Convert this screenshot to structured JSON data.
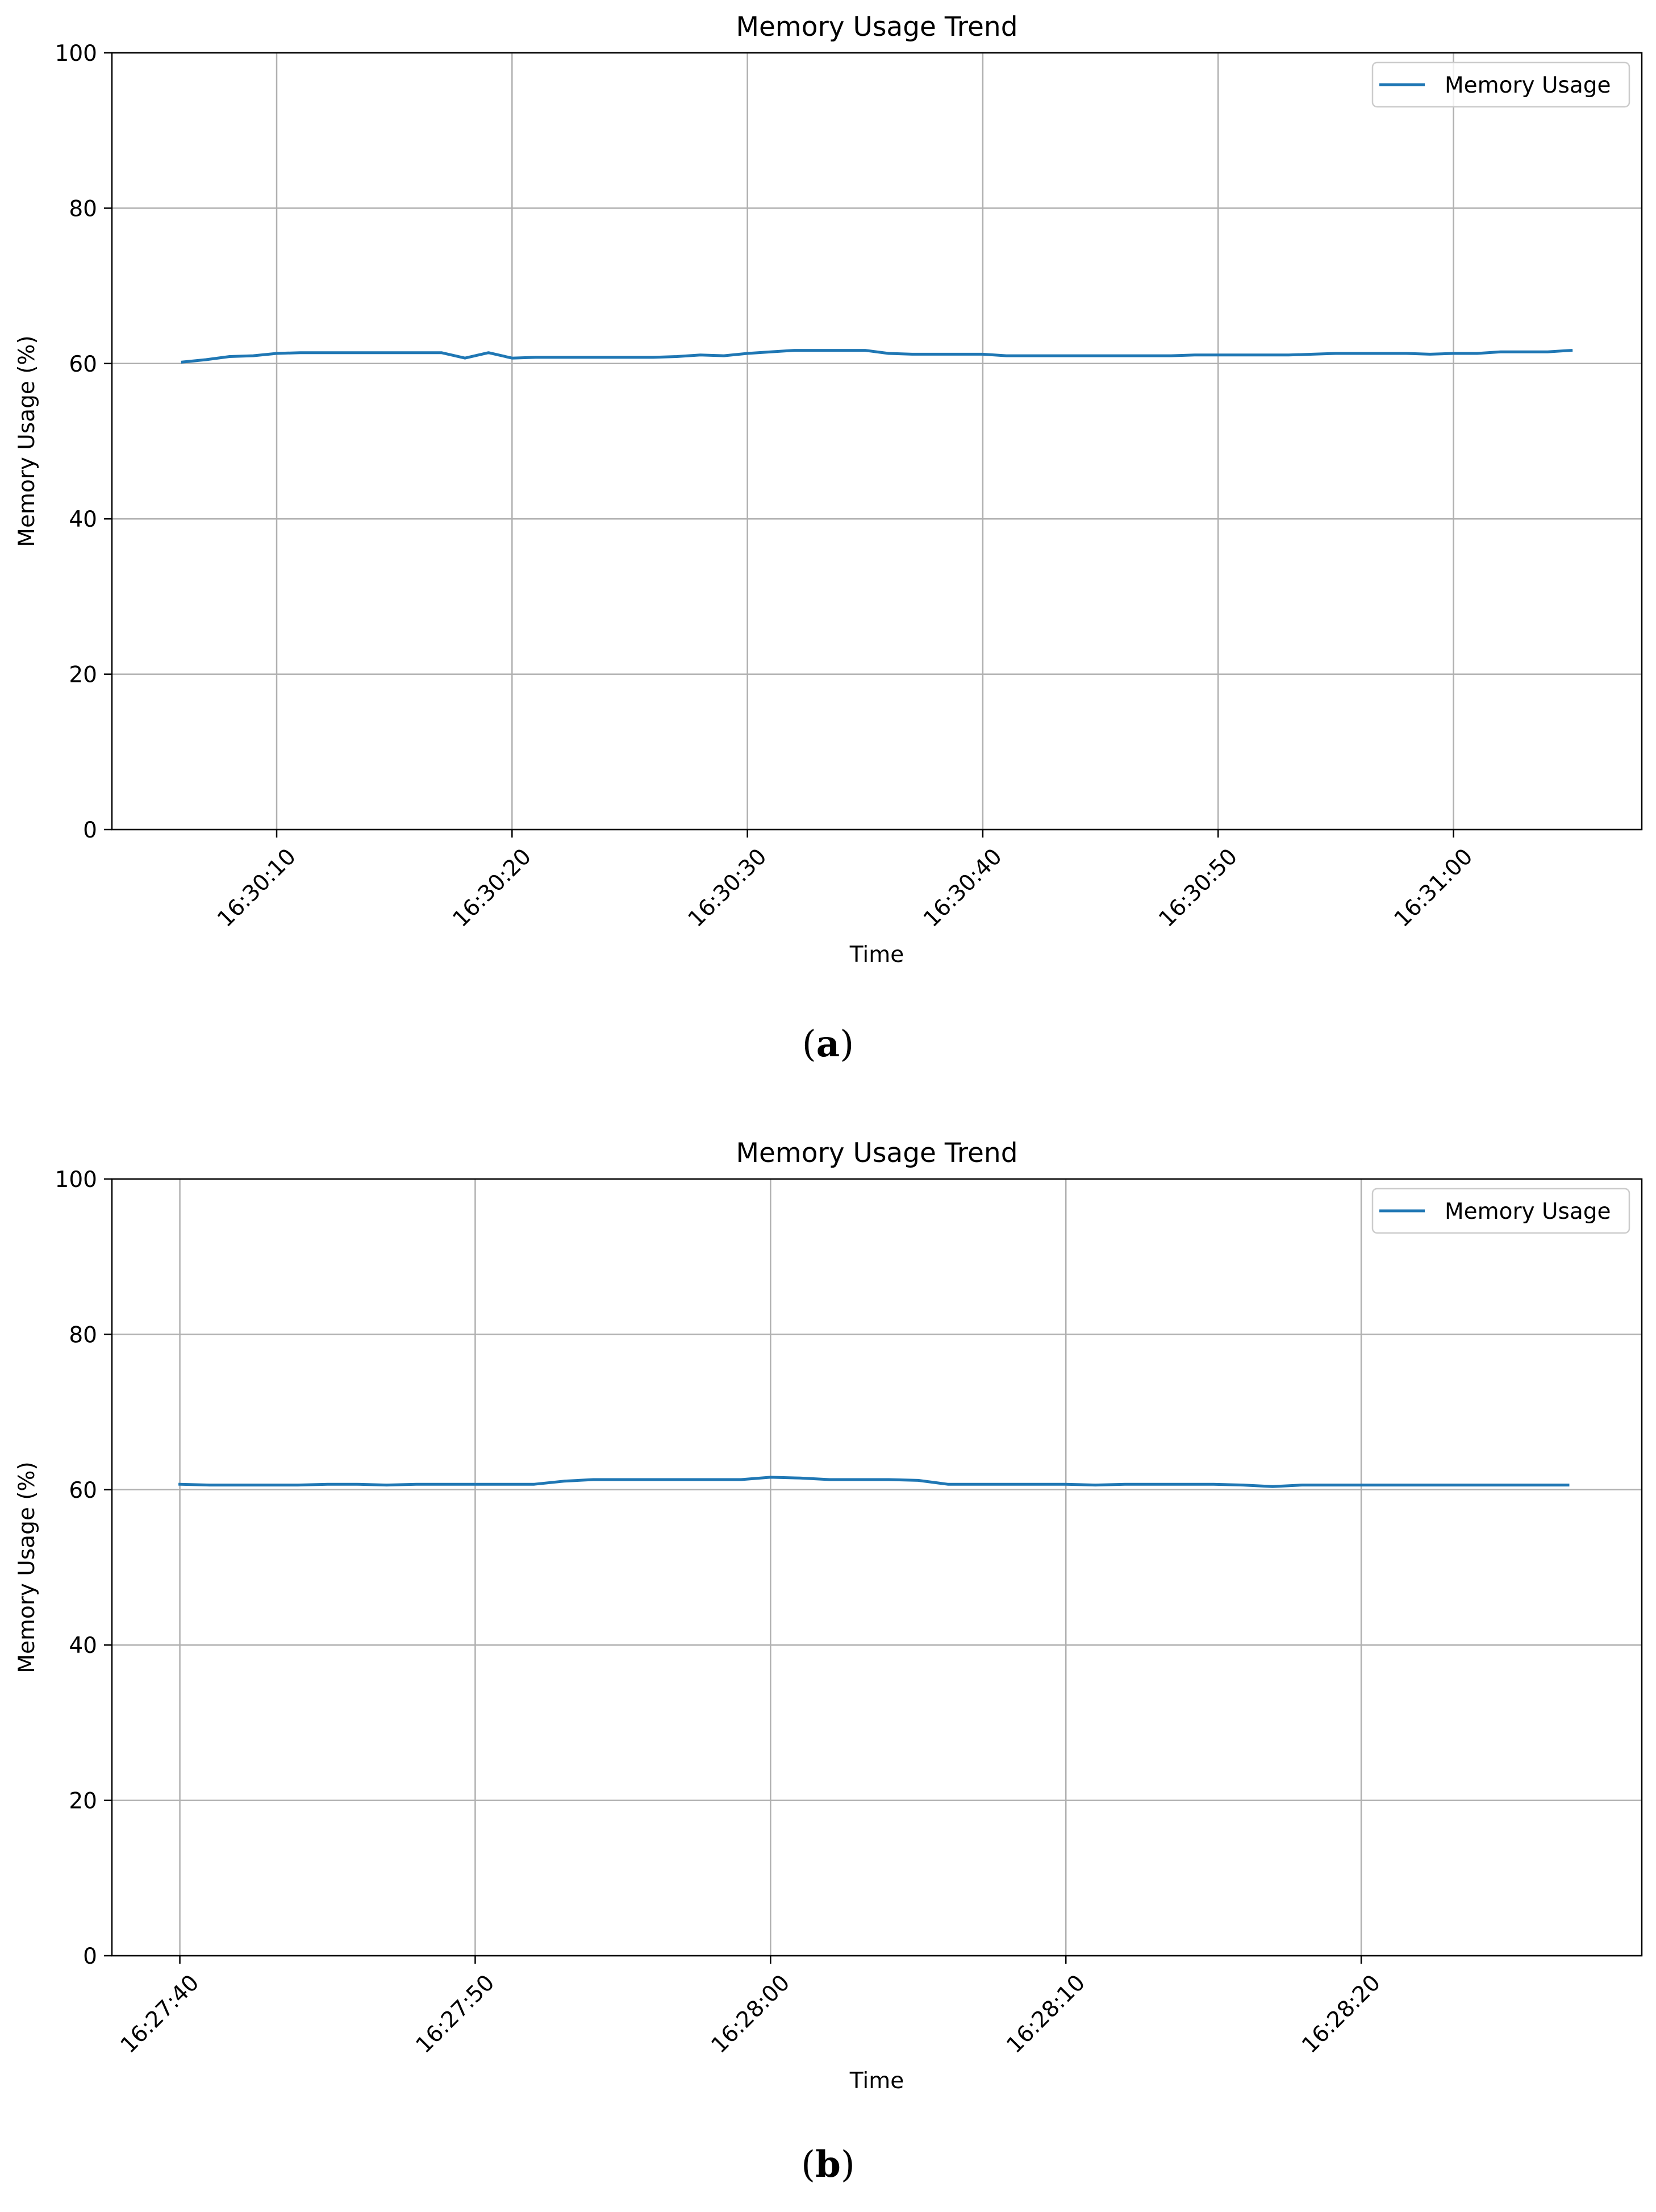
{
  "panels": [
    {
      "caption_open": "(",
      "caption_letter": "a",
      "caption_close": ")"
    },
    {
      "caption_open": "(",
      "caption_letter": "b",
      "caption_close": ")"
    }
  ],
  "colors": {
    "series": "#1f77b4",
    "grid": "#b0b0b0",
    "axis": "#000000",
    "legend_border": "#cccccc"
  },
  "chart_data": [
    {
      "type": "line",
      "title": "Memory Usage Trend",
      "xlabel": "Time",
      "ylabel": "Memory Usage (%)",
      "x_type": "time",
      "xlim": [
        "16:30:03",
        "16:31:08"
      ],
      "ylim": [
        0,
        100
      ],
      "x_ticks": [
        "16:30:10",
        "16:30:20",
        "16:30:30",
        "16:30:40",
        "16:30:50",
        "16:31:00"
      ],
      "y_ticks": [
        0,
        20,
        40,
        60,
        80,
        100
      ],
      "grid": true,
      "legend_position": "top-right",
      "series": [
        {
          "name": "Memory Usage",
          "x": [
            "16:30:06",
            "16:30:07",
            "16:30:08",
            "16:30:09",
            "16:30:10",
            "16:30:11",
            "16:30:12",
            "16:30:13",
            "16:30:14",
            "16:30:15",
            "16:30:16",
            "16:30:17",
            "16:30:18",
            "16:30:19",
            "16:30:20",
            "16:30:21",
            "16:30:22",
            "16:30:23",
            "16:30:24",
            "16:30:25",
            "16:30:26",
            "16:30:27",
            "16:30:28",
            "16:30:29",
            "16:30:30",
            "16:30:31",
            "16:30:32",
            "16:30:33",
            "16:30:34",
            "16:30:35",
            "16:30:36",
            "16:30:37",
            "16:30:38",
            "16:30:39",
            "16:30:40",
            "16:30:41",
            "16:30:42",
            "16:30:43",
            "16:30:44",
            "16:30:45",
            "16:30:46",
            "16:30:47",
            "16:30:48",
            "16:30:49",
            "16:30:50",
            "16:30:51",
            "16:30:52",
            "16:30:53",
            "16:30:54",
            "16:30:55",
            "16:30:56",
            "16:30:57",
            "16:30:58",
            "16:30:59",
            "16:31:00",
            "16:31:01",
            "16:31:02",
            "16:31:03",
            "16:31:04",
            "16:31:05"
          ],
          "values": [
            60.2,
            60.5,
            60.9,
            61.0,
            61.3,
            61.4,
            61.4,
            61.4,
            61.4,
            61.4,
            61.4,
            61.4,
            60.7,
            61.4,
            60.7,
            60.8,
            60.8,
            60.8,
            60.8,
            60.8,
            60.8,
            60.9,
            61.1,
            61.0,
            61.3,
            61.5,
            61.7,
            61.7,
            61.7,
            61.7,
            61.3,
            61.2,
            61.2,
            61.2,
            61.2,
            61.0,
            61.0,
            61.0,
            61.0,
            61.0,
            61.0,
            61.0,
            61.0,
            61.1,
            61.1,
            61.1,
            61.1,
            61.1,
            61.2,
            61.3,
            61.3,
            61.3,
            61.3,
            61.2,
            61.3,
            61.3,
            61.5,
            61.5,
            61.5,
            61.7
          ]
        }
      ]
    },
    {
      "type": "line",
      "title": "Memory Usage Trend",
      "xlabel": "Time",
      "ylabel": "Memory Usage (%)",
      "x_type": "time",
      "xlim": [
        "16:27:37.7",
        "16:28:29.5"
      ],
      "ylim": [
        0,
        100
      ],
      "x_ticks": [
        "16:27:40",
        "16:27:50",
        "16:28:00",
        "16:28:10",
        "16:28:20"
      ],
      "y_ticks": [
        0,
        20,
        40,
        60,
        80,
        100
      ],
      "grid": true,
      "legend_position": "top-right",
      "series": [
        {
          "name": "Memory Usage",
          "x": [
            "16:27:40",
            "16:27:41",
            "16:27:42",
            "16:27:43",
            "16:27:44",
            "16:27:45",
            "16:27:46",
            "16:27:47",
            "16:27:48",
            "16:27:49",
            "16:27:50",
            "16:27:51",
            "16:27:52",
            "16:27:53",
            "16:27:54",
            "16:27:55",
            "16:27:56",
            "16:27:57",
            "16:27:58",
            "16:27:59",
            "16:28:00",
            "16:28:01",
            "16:28:02",
            "16:28:03",
            "16:28:04",
            "16:28:05",
            "16:28:06",
            "16:28:07",
            "16:28:08",
            "16:28:09",
            "16:28:10",
            "16:28:11",
            "16:28:12",
            "16:28:13",
            "16:28:14",
            "16:28:15",
            "16:28:16",
            "16:28:17",
            "16:28:18",
            "16:28:19",
            "16:28:20",
            "16:28:21",
            "16:28:22",
            "16:28:23",
            "16:28:24",
            "16:28:25",
            "16:28:26",
            "16:28:27"
          ],
          "values": [
            60.7,
            60.6,
            60.6,
            60.6,
            60.6,
            60.7,
            60.7,
            60.6,
            60.7,
            60.7,
            60.7,
            60.7,
            60.7,
            61.1,
            61.3,
            61.3,
            61.3,
            61.3,
            61.3,
            61.3,
            61.6,
            61.5,
            61.3,
            61.3,
            61.3,
            61.2,
            60.7,
            60.7,
            60.7,
            60.7,
            60.7,
            60.6,
            60.7,
            60.7,
            60.7,
            60.7,
            60.6,
            60.4,
            60.6,
            60.6,
            60.6,
            60.6,
            60.6,
            60.6,
            60.6,
            60.6,
            60.6,
            60.6
          ]
        }
      ]
    }
  ]
}
